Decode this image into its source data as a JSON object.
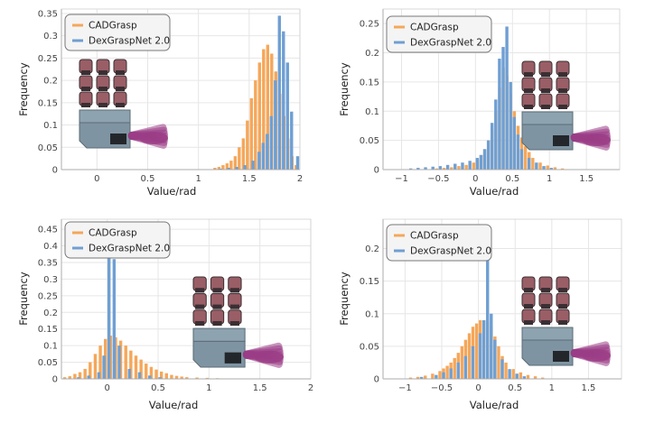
{
  "colors": {
    "orange": "#f5a75a",
    "blue": "#6f9fd2",
    "grid": "#e6e6e6",
    "hand_body": "#9a5e66",
    "hand_joint": "#3a2f33",
    "palm": "#8ea3b0",
    "motion": "#9b3d86"
  },
  "hand_icon": "robotic-hand-illustration",
  "chart_data": [
    {
      "type": "bar",
      "grid": true,
      "xlabel": "Value/rad",
      "ylabel": "Frequency",
      "xlim": [
        -0.35,
        2.0
      ],
      "ylim": [
        0,
        0.36
      ],
      "xticks": [
        "0",
        "0.5",
        "1",
        "1.5",
        "2"
      ],
      "yticks": [
        "0",
        "0.05",
        "0.1",
        "0.15",
        "0.2",
        "0.25",
        "0.3",
        "0.35"
      ],
      "legend_position": "top-left",
      "series": [
        {
          "name": "CADGrasp",
          "color": "orange",
          "x": [
            1.18,
            1.22,
            1.26,
            1.3,
            1.34,
            1.38,
            1.42,
            1.46,
            1.5,
            1.54,
            1.58,
            1.62,
            1.66,
            1.7,
            1.74,
            1.78,
            1.82,
            1.86,
            1.9,
            1.94,
            1.98
          ],
          "values": [
            0.004,
            0.006,
            0.01,
            0.014,
            0.02,
            0.03,
            0.05,
            0.07,
            0.11,
            0.16,
            0.2,
            0.24,
            0.27,
            0.28,
            0.26,
            0.22,
            0.17,
            0.12,
            0.07,
            0.03,
            0.01
          ]
        },
        {
          "name": "DexGraspNet 2.0",
          "color": "blue",
          "x": [
            1.2,
            1.28,
            1.36,
            1.44,
            1.52,
            1.58,
            1.62,
            1.66,
            1.7,
            1.74,
            1.78,
            1.82,
            1.86,
            1.9,
            1.96
          ],
          "values": [
            0.002,
            0.004,
            0.006,
            0.01,
            0.02,
            0.04,
            0.06,
            0.08,
            0.12,
            0.2,
            0.345,
            0.31,
            0.24,
            0.13,
            0.03
          ]
        }
      ]
    },
    {
      "type": "bar",
      "grid": true,
      "xlabel": "Value/rad",
      "ylabel": "Frequency",
      "xlim": [
        -1.25,
        1.95
      ],
      "ylim": [
        0,
        0.275
      ],
      "xticks": [
        "−1",
        "−0.5",
        "0",
        "0.5",
        "1",
        "1.5"
      ],
      "yticks": [
        "0",
        "0.05",
        "0.1",
        "0.15",
        "0.2",
        "0.25"
      ],
      "legend_position": "top-left",
      "series": [
        {
          "name": "CADGrasp",
          "color": "orange",
          "x": [
            -0.5,
            -0.4,
            -0.3,
            -0.2,
            -0.1,
            0.0,
            0.05,
            0.1,
            0.15,
            0.2,
            0.25,
            0.3,
            0.35,
            0.4,
            0.45,
            0.5,
            0.55,
            0.6,
            0.65,
            0.7,
            0.75,
            0.8,
            0.9,
            1.0,
            1.1,
            1.2
          ],
          "values": [
            0.002,
            0.003,
            0.004,
            0.006,
            0.008,
            0.012,
            0.018,
            0.025,
            0.035,
            0.05,
            0.07,
            0.1,
            0.14,
            0.175,
            0.16,
            0.13,
            0.1,
            0.075,
            0.055,
            0.04,
            0.03,
            0.02,
            0.012,
            0.007,
            0.004,
            0.002
          ]
        },
        {
          "name": "DexGraspNet 2.0",
          "color": "blue",
          "x": [
            -0.9,
            -0.8,
            -0.7,
            -0.6,
            -0.5,
            -0.4,
            -0.3,
            -0.2,
            -0.1,
            0.0,
            0.05,
            0.1,
            0.15,
            0.2,
            0.25,
            0.3,
            0.35,
            0.4,
            0.45,
            0.5,
            0.55,
            0.6,
            0.7,
            0.8,
            0.9,
            1.0
          ],
          "values": [
            0.002,
            0.003,
            0.004,
            0.005,
            0.006,
            0.008,
            0.01,
            0.012,
            0.015,
            0.02,
            0.025,
            0.035,
            0.05,
            0.08,
            0.12,
            0.19,
            0.21,
            0.245,
            0.15,
            0.09,
            0.06,
            0.035,
            0.02,
            0.012,
            0.006,
            0.003
          ]
        }
      ]
    },
    {
      "type": "bar",
      "grid": true,
      "xlabel": "Value/rad",
      "ylabel": "Frequency",
      "xlim": [
        -0.45,
        2.0
      ],
      "ylim": [
        0,
        0.48
      ],
      "xticks": [
        "0",
        "0.5",
        "1",
        "1.5",
        "2"
      ],
      "yticks": [
        "0",
        "0.05",
        "0.1",
        "0.15",
        "0.2",
        "0.25",
        "0.3",
        "0.35",
        "0.4",
        "0.45"
      ],
      "legend_position": "top-left",
      "series": [
        {
          "name": "CADGrasp",
          "color": "orange",
          "x": [
            -0.4,
            -0.35,
            -0.3,
            -0.25,
            -0.2,
            -0.15,
            -0.1,
            -0.05,
            0.0,
            0.05,
            0.1,
            0.15,
            0.2,
            0.25,
            0.3,
            0.35,
            0.4,
            0.45,
            0.5,
            0.55,
            0.6,
            0.65,
            0.7,
            0.75,
            0.8,
            0.9,
            1.0,
            1.1,
            1.2
          ],
          "values": [
            0.005,
            0.008,
            0.015,
            0.02,
            0.03,
            0.05,
            0.075,
            0.1,
            0.12,
            0.13,
            0.125,
            0.115,
            0.1,
            0.085,
            0.07,
            0.058,
            0.046,
            0.036,
            0.028,
            0.022,
            0.017,
            0.012,
            0.009,
            0.007,
            0.005,
            0.004,
            0.003,
            0.002,
            0.001
          ]
        },
        {
          "name": "DexGraspNet 2.0",
          "color": "blue",
          "x": [
            -0.3,
            -0.2,
            -0.1,
            -0.05,
            0.0,
            0.05,
            0.1,
            0.2,
            0.3,
            0.4,
            0.5
          ],
          "values": [
            0.005,
            0.01,
            0.02,
            0.07,
            0.4,
            0.36,
            0.1,
            0.03,
            0.02,
            0.01,
            0.005
          ]
        }
      ]
    },
    {
      "type": "bar",
      "grid": true,
      "xlabel": "Value/rad",
      "ylabel": "Frequency",
      "xlim": [
        -1.3,
        1.95
      ],
      "ylim": [
        0,
        0.245
      ],
      "xticks": [
        "−1",
        "−0.5",
        "0",
        "0.5",
        "1",
        "1.5"
      ],
      "yticks": [
        "0",
        "0.05",
        "0.1",
        "0.15",
        "0.2"
      ],
      "legend_position": "top-left",
      "series": [
        {
          "name": "CADGrasp",
          "color": "orange",
          "x": [
            -0.9,
            -0.8,
            -0.7,
            -0.6,
            -0.5,
            -0.45,
            -0.4,
            -0.35,
            -0.3,
            -0.25,
            -0.2,
            -0.15,
            -0.1,
            -0.05,
            0.0,
            0.05,
            0.1,
            0.15,
            0.2,
            0.25,
            0.3,
            0.35,
            0.4,
            0.5,
            0.6,
            0.7,
            0.8,
            0.9
          ],
          "values": [
            0.002,
            0.003,
            0.005,
            0.008,
            0.012,
            0.016,
            0.02,
            0.025,
            0.032,
            0.04,
            0.05,
            0.06,
            0.07,
            0.08,
            0.085,
            0.09,
            0.09,
            0.088,
            0.08,
            0.065,
            0.05,
            0.035,
            0.025,
            0.015,
            0.01,
            0.006,
            0.004,
            0.002
          ]
        },
        {
          "name": "DexGraspNet 2.0",
          "color": "blue",
          "x": [
            -0.8,
            -0.6,
            -0.5,
            -0.4,
            -0.3,
            -0.2,
            -0.1,
            0.0,
            0.05,
            0.1,
            0.15,
            0.2,
            0.3,
            0.4,
            0.5,
            0.6
          ],
          "values": [
            0.003,
            0.006,
            0.01,
            0.016,
            0.025,
            0.035,
            0.05,
            0.07,
            0.09,
            0.235,
            0.1,
            0.06,
            0.03,
            0.015,
            0.008,
            0.004
          ]
        }
      ]
    }
  ]
}
